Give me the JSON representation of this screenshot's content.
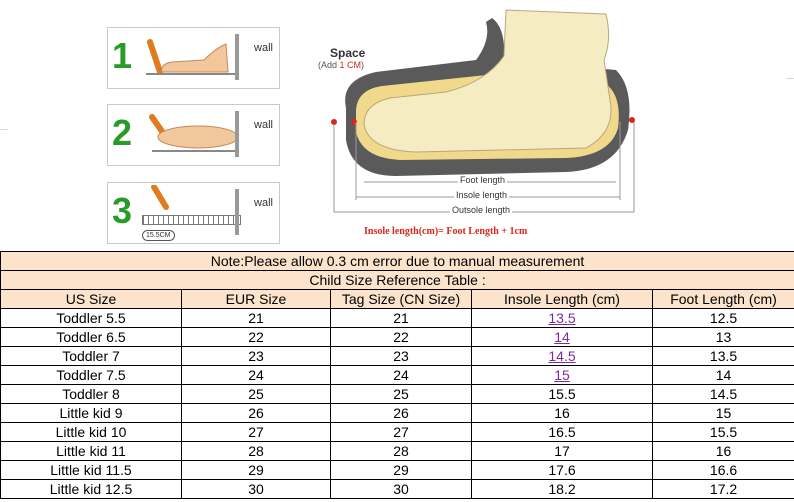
{
  "illustration": {
    "steps": [
      {
        "number": "1",
        "wall_label": "wall"
      },
      {
        "number": "2",
        "wall_label": "wall"
      },
      {
        "number": "3",
        "wall_label": "wall",
        "ruler_reading": "15.5CM"
      }
    ],
    "space_title": "Space",
    "space_note_prefix": "(Add ",
    "space_note_value": "1 CM",
    "space_note_suffix": ")",
    "foot_length_label": "Foot length",
    "insole_length_label": "Insole length",
    "outsole_length_label": "Outsole length",
    "formula": "Insole length(cm)= Foot Length + 1cm",
    "colors": {
      "accent_red": "#d9261c",
      "step_green": "#2a9a2a",
      "foot": "#f6ecc4",
      "sole": "#5a5a5a"
    }
  },
  "table": {
    "note": "Note:Please allow 0.3 cm error due to manual measurement",
    "title": "Child Size Reference Table :",
    "headers": [
      "US Size",
      "EUR Size",
      "Tag Size (CN Size)",
      "Insole Length (cm)",
      "Foot Length (cm)"
    ],
    "rows": [
      [
        "Toddler 5.5",
        "21",
        "21",
        "13.5",
        "12.5"
      ],
      [
        "Toddler 6.5",
        "22",
        "22",
        "14",
        "13"
      ],
      [
        "Toddler 7",
        "23",
        "23",
        "14.5",
        "13.5"
      ],
      [
        "Toddler 7.5",
        "24",
        "24",
        "15",
        "14"
      ],
      [
        "Toddler 8",
        "25",
        "25",
        "15.5",
        "14.5"
      ],
      [
        "Little kid 9",
        "26",
        "26",
        "16",
        "15"
      ],
      [
        "Little kid 10",
        "27",
        "27",
        "16.5",
        "15.5"
      ],
      [
        "Little kid 11",
        "28",
        "28",
        "17",
        "16"
      ],
      [
        "Little kid 11.5",
        "29",
        "29",
        "17.6",
        "16.6"
      ],
      [
        "Little kid 12.5",
        "30",
        "30",
        "18.2",
        "17.2"
      ]
    ],
    "colors": {
      "band": "#fbe3cc",
      "link": "#7f2aa0"
    }
  }
}
